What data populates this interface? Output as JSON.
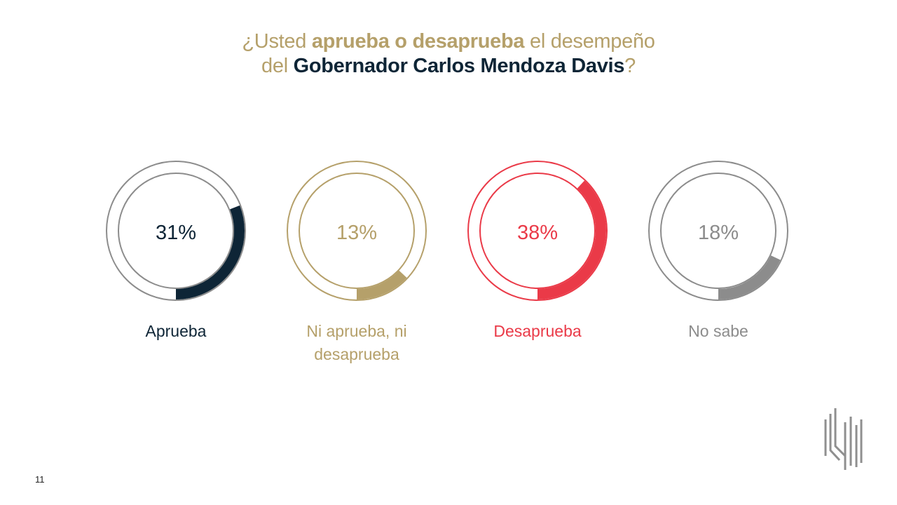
{
  "title": {
    "line1_a": "¿Usted ",
    "line1_b": "aprueba o desaprueba",
    "line1_c": " el desempeño",
    "line2_a": "del ",
    "line2_b": "Gobernador Carlos Mendoza Davis",
    "line2_c": "?"
  },
  "chart_data": {
    "type": "pie",
    "title": "¿Usted aprueba o desaprueba el desempeño del Gobernador Carlos Mendoza Davis?",
    "series": [
      {
        "name": "Aprueba",
        "value": 31,
        "label": "31%",
        "color": "#0e2536"
      },
      {
        "name": "Ni aprueba, ni desaprueba",
        "value": 13,
        "label": "13%",
        "color": "#b5a06a",
        "lines": [
          "Ni aprueba, ni",
          "desaprueba"
        ]
      },
      {
        "name": "Desaprueba",
        "value": 38,
        "label": "38%",
        "color": "#ea3a48"
      },
      {
        "name": "No sabe",
        "value": 18,
        "label": "18%",
        "color": "#8c8c8c"
      }
    ]
  },
  "page_number": "11"
}
